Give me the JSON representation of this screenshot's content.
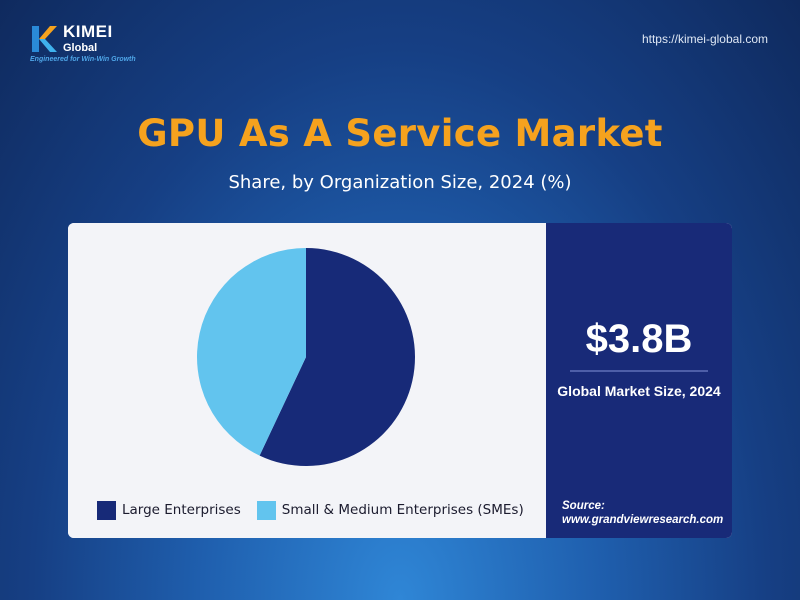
{
  "brand": {
    "name": "KIMEI",
    "sub": "Global",
    "tagline": "Engineered for Win-Win Growth",
    "url": "https://kimei-global.com"
  },
  "header": {
    "title": "GPU As A Service Market",
    "subtitle": "Share, by Organization Size, 2024 (%)"
  },
  "market": {
    "value": "$3.8B",
    "label": "Global Market Size, 2024"
  },
  "source": {
    "label": "Source:",
    "url": "www.grandviewresearch.com"
  },
  "colors": {
    "large": "#172a78",
    "sme": "#62c4ee",
    "title": "#f5a21e"
  },
  "chart_data": {
    "type": "pie",
    "title": "GPU As A Service Market",
    "subtitle": "Share, by Organization Size, 2024 (%)",
    "categories": [
      "Large Enterprises",
      "Small & Medium Enterprises (SMEs)"
    ],
    "values": [
      57,
      43
    ],
    "colors": [
      "#172a78",
      "#62c4ee"
    ],
    "start_angle_deg": 0,
    "direction": "clockwise",
    "legend": "bottom"
  }
}
